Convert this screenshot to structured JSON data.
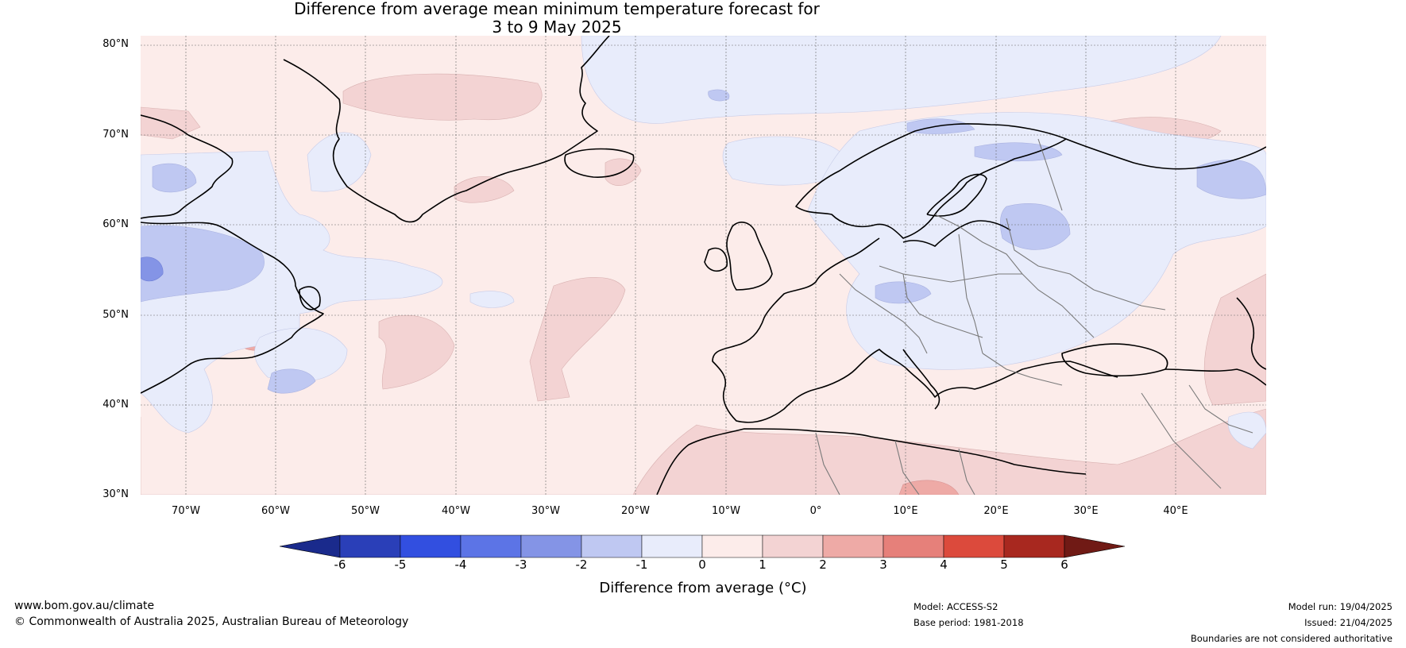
{
  "title": {
    "line1": "Difference from average mean minimum temperature forecast for",
    "line2": "3 to 9 May 2025"
  },
  "map": {
    "lat_labels": [
      "80°N",
      "70°N",
      "60°N",
      "50°N",
      "40°N",
      "30°N"
    ],
    "lon_labels": [
      "70°W",
      "60°W",
      "50°W",
      "40°W",
      "30°W",
      "20°W",
      "10°W",
      "0°",
      "10°E",
      "20°E",
      "30°E",
      "40°E"
    ],
    "colors": {
      "neg_1_0": "#e8ecfb",
      "neg_2_1": "#bfc8f2",
      "neg_3_2": "#8494e6",
      "pos_0_1": "#fcecea",
      "pos_1_2": "#f3d3d3",
      "pos_2_3": "#eeaaa6"
    }
  },
  "colorbar": {
    "ticks": [
      "-6",
      "-5",
      "-4",
      "-3",
      "-2",
      "-1",
      "0",
      "1",
      "2",
      "3",
      "4",
      "5",
      "6"
    ],
    "colors": [
      "#1a2a8c",
      "#2a3fb8",
      "#324fe0",
      "#5c74e6",
      "#8494e6",
      "#bfc8f2",
      "#e8ecfb",
      "#fcecea",
      "#f3d3d3",
      "#eeaaa6",
      "#e6807a",
      "#dc4a3c",
      "#a8281f",
      "#701a15"
    ],
    "label": "Difference from average (°C)"
  },
  "footer": {
    "website": "www.bom.gov.au/climate",
    "copyright": "© Commonwealth of Australia 2025, Australian Bureau of Meteorology",
    "model": "Model: ACCESS-S2",
    "base_period": "Base period: 1981-2018",
    "model_run": "Model run: 19/04/2025",
    "issued": "Issued: 21/04/2025",
    "disclaimer": "Boundaries are not considered authoritative"
  }
}
